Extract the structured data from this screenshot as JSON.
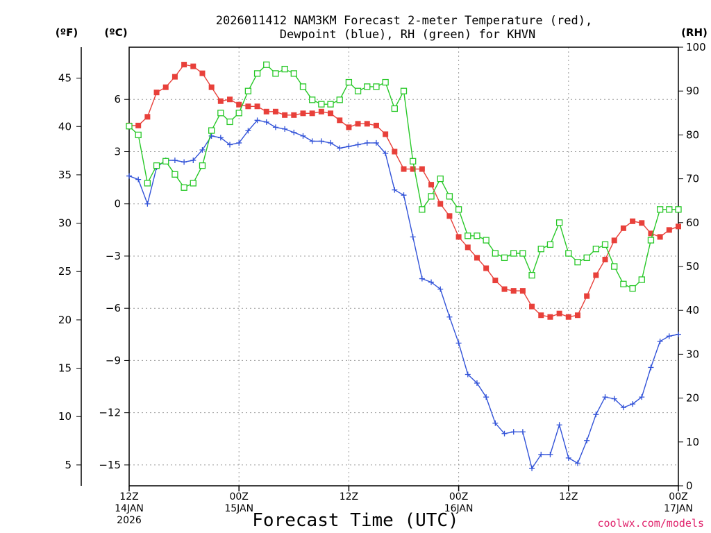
{
  "chart_data": {
    "type": "line",
    "title_line1": "2026011412 NAM3KM Forecast 2-meter Temperature (red),",
    "title_line2": "Dewpoint (blue), RH (green) for KHVN",
    "xlabel": "Forecast Time (UTC)",
    "credit": "coolwx.com/models",
    "x_unit_hours": 1,
    "xlim_hours": [
      0,
      60
    ],
    "x_ticks": [
      {
        "hour": 0,
        "lines": [
          "12Z",
          "14JAN",
          "2026"
        ]
      },
      {
        "hour": 12,
        "lines": [
          "00Z",
          "15JAN"
        ]
      },
      {
        "hour": 24,
        "lines": [
          "12Z"
        ]
      },
      {
        "hour": 36,
        "lines": [
          "00Z",
          "16JAN"
        ]
      },
      {
        "hour": 48,
        "lines": [
          "12Z"
        ]
      },
      {
        "hour": 60,
        "lines": [
          "00Z",
          "17JAN"
        ]
      }
    ],
    "axes": {
      "fahrenheit": {
        "label": "(ºF)",
        "ticks": [
          5,
          10,
          15,
          20,
          25,
          30,
          35,
          40,
          45
        ]
      },
      "celsius": {
        "label": "(ºC)",
        "ylim": [
          -16.2,
          9.0
        ],
        "ticks": [
          -15,
          -12,
          -9,
          -6,
          -3,
          0,
          3,
          6
        ]
      },
      "rh": {
        "label": "(RH)",
        "ylim": [
          0,
          100
        ],
        "ticks": [
          0,
          10,
          20,
          30,
          40,
          50,
          60,
          70,
          80,
          90,
          100
        ]
      }
    },
    "series": [
      {
        "name": "2-meter Temperature",
        "unit": "C",
        "axis": "celsius",
        "color": "#e8403a",
        "marker": "filled-square",
        "x": [
          0,
          1,
          2,
          3,
          4,
          5,
          6,
          7,
          8,
          9,
          10,
          11,
          12,
          13,
          14,
          15,
          16,
          17,
          18,
          19,
          20,
          21,
          22,
          23,
          24,
          25,
          26,
          27,
          28,
          29,
          30,
          31,
          32,
          33,
          34,
          35,
          36,
          37,
          38,
          39,
          40,
          41,
          42,
          43,
          44,
          45,
          46,
          47,
          48,
          49,
          50,
          51,
          52,
          53,
          54,
          55,
          56,
          57,
          58,
          59,
          60
        ],
        "values": [
          4.5,
          4.5,
          5.0,
          6.4,
          6.7,
          7.3,
          8.0,
          7.9,
          7.5,
          6.7,
          5.9,
          6.0,
          5.7,
          5.6,
          5.6,
          5.3,
          5.3,
          5.1,
          5.1,
          5.2,
          5.2,
          5.3,
          5.2,
          4.8,
          4.4,
          4.6,
          4.6,
          4.5,
          4.0,
          3.0,
          2.0,
          2.0,
          2.0,
          1.1,
          0.0,
          -0.7,
          -1.9,
          -2.5,
          -3.1,
          -3.7,
          -4.4,
          -4.9,
          -5.0,
          -5.0,
          -5.9,
          -6.4,
          -6.5,
          -6.3,
          -6.5,
          -6.4,
          -5.3,
          -4.1,
          -3.2,
          -2.1,
          -1.4,
          -1.0,
          -1.1,
          -1.7,
          -1.9,
          -1.5,
          -1.3
        ]
      },
      {
        "name": "Dewpoint",
        "unit": "C",
        "axis": "celsius",
        "color": "#3152d8",
        "marker": "plus",
        "x": [
          0,
          1,
          2,
          3,
          4,
          5,
          6,
          7,
          8,
          9,
          10,
          11,
          12,
          13,
          14,
          15,
          16,
          17,
          18,
          19,
          20,
          21,
          22,
          23,
          24,
          25,
          26,
          27,
          28,
          29,
          30,
          31,
          32,
          33,
          34,
          35,
          36,
          37,
          38,
          39,
          40,
          41,
          42,
          43,
          44,
          45,
          46,
          47,
          48,
          49,
          50,
          51,
          52,
          53,
          54,
          55,
          56,
          57,
          58,
          59,
          60
        ],
        "values": [
          1.6,
          1.4,
          0.0,
          2.1,
          2.5,
          2.5,
          2.4,
          2.5,
          3.1,
          3.9,
          3.8,
          3.4,
          3.5,
          4.2,
          4.8,
          4.7,
          4.4,
          4.3,
          4.1,
          3.9,
          3.6,
          3.6,
          3.5,
          3.2,
          3.3,
          3.4,
          3.5,
          3.5,
          2.9,
          0.8,
          0.5,
          -1.9,
          -4.3,
          -4.5,
          -4.9,
          -6.5,
          -8.0,
          -9.8,
          -10.3,
          -11.1,
          -12.6,
          -13.2,
          -13.1,
          -13.1,
          -15.2,
          -14.4,
          -14.4,
          -12.7,
          -14.6,
          -14.9,
          -13.6,
          -12.1,
          -11.1,
          -11.2,
          -11.7,
          -11.5,
          -11.1,
          -9.4,
          -7.9,
          -7.6,
          -7.5
        ]
      },
      {
        "name": "RH",
        "unit": "%",
        "axis": "rh",
        "color": "#27c827",
        "marker": "open-square",
        "x": [
          0,
          1,
          2,
          3,
          4,
          5,
          6,
          7,
          8,
          9,
          10,
          11,
          12,
          13,
          14,
          15,
          16,
          17,
          18,
          19,
          20,
          21,
          22,
          23,
          24,
          25,
          26,
          27,
          28,
          29,
          30,
          31,
          32,
          33,
          34,
          35,
          36,
          37,
          38,
          39,
          40,
          41,
          42,
          43,
          44,
          45,
          46,
          47,
          48,
          49,
          50,
          51,
          52,
          53,
          54,
          55,
          56,
          57,
          58,
          59,
          60
        ],
        "values": [
          82,
          80,
          69,
          73,
          74,
          71,
          68,
          69,
          73,
          81,
          85,
          83,
          85,
          90,
          94,
          96,
          94,
          95,
          94,
          91,
          88,
          87,
          87,
          88,
          92,
          90,
          91,
          91,
          92,
          86,
          90,
          74,
          63,
          66,
          70,
          66,
          63,
          57,
          57,
          56,
          53,
          52,
          53,
          53,
          48,
          54,
          55,
          60,
          53,
          51,
          52,
          54,
          55,
          50,
          46,
          45,
          47,
          56,
          63,
          63,
          63
        ]
      }
    ]
  }
}
